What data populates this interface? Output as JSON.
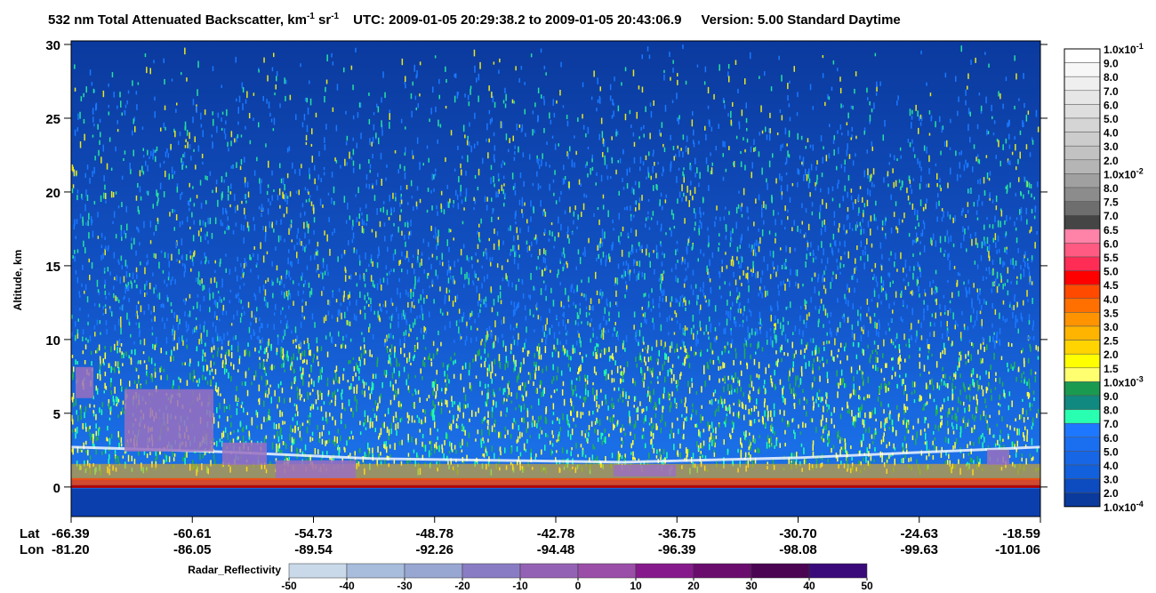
{
  "chart_data": {
    "type": "heatmap",
    "title": {
      "main": "532 nm Total Attenuated Backscatter, km",
      "sup1": "-1",
      "mid": " sr",
      "sup2": "-1",
      "utc": "UTC:  2009-01-05 20:29:38.2  to  2009-01-05 20:43:06.9",
      "version": "Version: 5.00  Standard  Daytime"
    },
    "y_label": "Altitude, km",
    "ylim": [
      -2,
      30
    ],
    "yticks": [
      0,
      5,
      10,
      15,
      20,
      25,
      30
    ],
    "lat_label": "Lat",
    "lon_label": "Lon",
    "lat": [
      "-66.39",
      "-60.61",
      "-54.73",
      "-48.78",
      "-42.78",
      "-36.75",
      "-30.70",
      "-24.63",
      "-18.59"
    ],
    "lon": [
      "-81.20",
      "-86.05",
      "-89.54",
      "-92.26",
      "-94.48",
      "-96.39",
      "-98.08",
      "-99.63",
      "-101.06"
    ],
    "colorbar": {
      "labels": [
        {
          "base": "1.0x10",
          "exp": "-1"
        },
        "9.0",
        "8.0",
        "7.0",
        "6.0",
        "5.0",
        "4.0",
        "3.0",
        "2.0",
        {
          "base": "1.0x10",
          "exp": "-2"
        },
        "8.0",
        "7.5",
        "7.0",
        "6.5",
        "6.0",
        "5.5",
        "5.0",
        "4.5",
        "4.0",
        "3.5",
        "3.0",
        "2.5",
        "2.0",
        "1.5",
        {
          "base": "1.0x10",
          "exp": "-3"
        },
        "9.0",
        "8.0",
        "7.0",
        "6.0",
        "5.0",
        "4.0",
        "3.0",
        "2.0",
        {
          "base": "1.0x10",
          "exp": "-4"
        }
      ],
      "colors": [
        "#ffffff",
        "#f7f7f7",
        "#efefef",
        "#e6e6e6",
        "#dedede",
        "#d5d5d5",
        "#cccccc",
        "#c2c2c2",
        "#b5b5b5",
        "#a0a0a0",
        "#8c8c8c",
        "#6e6e6e",
        "#454545",
        "#ff82a8",
        "#ff5a82",
        "#ff2c55",
        "#ff0000",
        "#ff4a00",
        "#ff7000",
        "#ff9400",
        "#ffb400",
        "#ffd400",
        "#ffff00",
        "#ffff70",
        "#1a9a50",
        "#108a80",
        "#28ffb0",
        "#1e78ff",
        "#1a6ef0",
        "#1666e6",
        "#1260dc",
        "#0c4cc0",
        "#0a3a9c"
      ]
    },
    "radar_colorbar": {
      "label": "Radar_Reflectivity",
      "ticks": [
        -50,
        -40,
        -30,
        -20,
        -10,
        0,
        10,
        20,
        30,
        40,
        50
      ],
      "colors": [
        "#c9d9ea",
        "#a8bcdc",
        "#98a6d2",
        "#8a7cc4",
        "#9462b4",
        "#9a4ea8",
        "#861a8c",
        "#6a0c6e",
        "#4a0452",
        "#3a0a7a"
      ]
    }
  }
}
